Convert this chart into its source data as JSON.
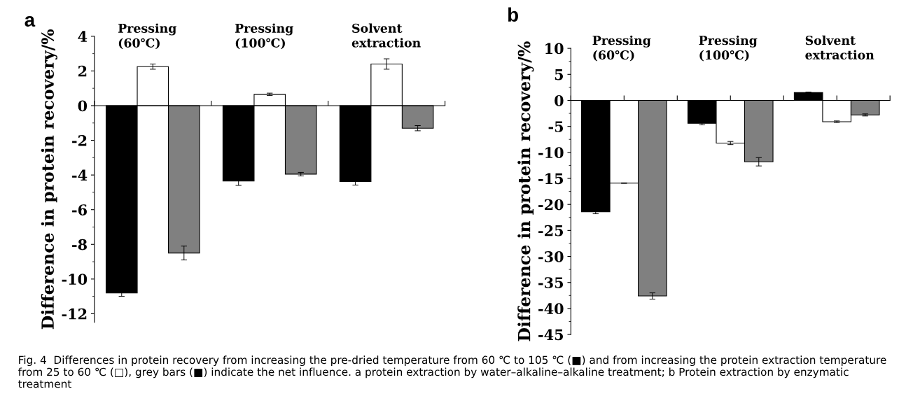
{
  "chart_data": [
    {
      "type": "bar",
      "title": "a",
      "ylabel": "Difference in protein recovery/%",
      "categories": [
        "Pressing\n(60℃)",
        "Pressing\n(100℃)",
        "Solvent\nextraction"
      ],
      "ylim": [
        -12.5,
        4
      ],
      "yticks": [
        -12,
        -10,
        -8,
        -6,
        -4,
        -2,
        0,
        2,
        4
      ],
      "legend": false,
      "series": [
        {
          "color": "#000000",
          "values": [
            -10.8,
            -4.35,
            -4.38
          ],
          "errors": [
            0.2,
            0.25,
            0.2
          ]
        },
        {
          "color": "#ffffff",
          "values": [
            2.25,
            0.65,
            2.4
          ],
          "errors": [
            0.15,
            0.07,
            0.3
          ]
        },
        {
          "color": "#808080",
          "values": [
            -8.5,
            -3.95,
            -1.3
          ],
          "errors": [
            0.4,
            0.1,
            0.15
          ]
        }
      ],
      "annotations": [
        "Fig. 4  Differences in protein recovery from increasing the pre-dried temperature from 60 ℃ to 105 ℃ (■) and from increasing the protein extraction temperature from 25 to 60 ℃ (□), grey bars (■) indicate the net influence. a protein extraction by water–alkaline–alkaline treatment; b Protein extraction by enzymatic treatment"
      ]
    },
    {
      "type": "bar",
      "title": "b",
      "ylabel": "Difference in protein recovery/%",
      "categories": [
        "Pressing\n(60℃)",
        "Pressing\n(100℃)",
        "Solvent\nextraction"
      ],
      "ylim": [
        -45,
        10
      ],
      "yticks": [
        -45,
        -40,
        -35,
        -30,
        -25,
        -20,
        -15,
        -10,
        -5,
        0,
        5,
        10
      ],
      "legend": false,
      "series": [
        {
          "color": "#000000",
          "values": [
            -21.4,
            -4.4,
            1.5
          ],
          "errors": [
            0.4,
            0.3,
            0.1
          ]
        },
        {
          "color": "#ffffff",
          "values": [
            -15.9,
            -8.2,
            -4.1
          ],
          "errors": [
            0.05,
            0.3,
            0.15
          ]
        },
        {
          "color": "#808080",
          "values": [
            -37.6,
            -11.8,
            -2.8
          ],
          "errors": [
            0.6,
            0.8,
            0.2
          ]
        }
      ]
    }
  ]
}
